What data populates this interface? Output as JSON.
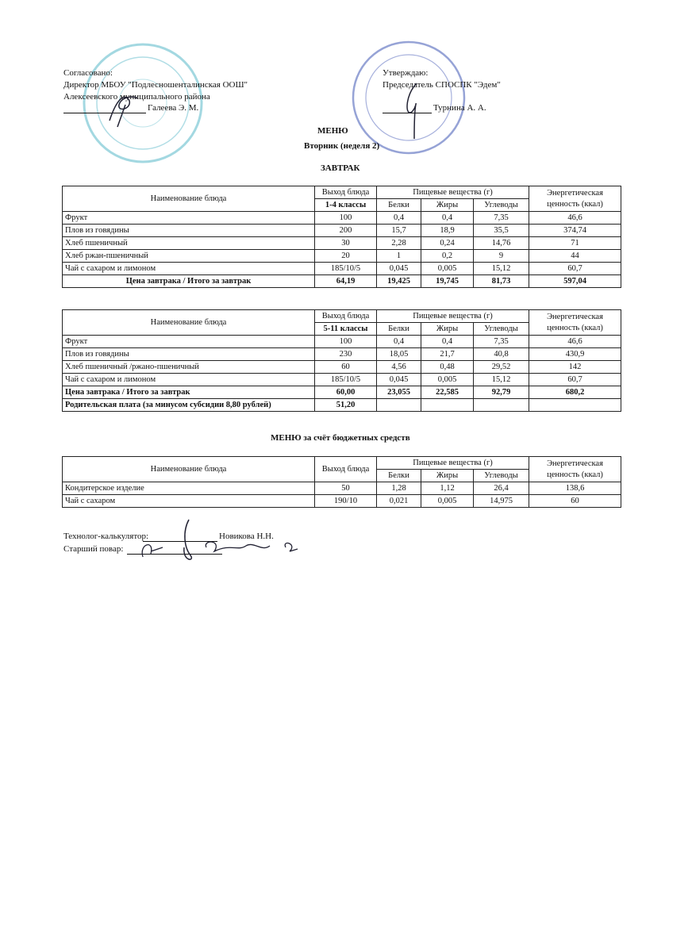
{
  "approval_left": {
    "label": "Согласовано:",
    "position": "Директор МБОУ \"Подлесношенталинская   ООШ\"",
    "district": "Алексеевского муниципального района",
    "name": "Галеева Э. М."
  },
  "approval_right": {
    "label": "Утверждаю:",
    "position": "Председатель СПОСПК  \"Эдем\"",
    "name": "Турнина А. А."
  },
  "stamps": {
    "left_text": "ОГРН 1021605754317 · 1605002926",
    "right_text": "СПОСПК \"ЭДЕМ\" ОГРН 1191690075752 ИНН 1605008409",
    "color": "#5fb7c9",
    "right_color": "#4a5fb0"
  },
  "title": {
    "menu": "МЕНЮ",
    "day": "Вторник (неделя 2)",
    "meal": "ЗАВТРАК"
  },
  "headers": {
    "name": "Наименование блюда",
    "yield": "Выход блюда",
    "nutrients": "Пищевые вещества (г)",
    "protein": "Белки",
    "fat": "Жиры",
    "carbs": "Углеводы",
    "energy": "Энергетическая ценность (ккал)"
  },
  "table1": {
    "group": "1-4 классы",
    "rows": [
      [
        "Фрукт",
        "100",
        "0,4",
        "0,4",
        "7,35",
        "46,6"
      ],
      [
        "Плов из говядины",
        "200",
        "15,7",
        "18,9",
        "35,5",
        "374,74"
      ],
      [
        "Хлеб пшеничный",
        "30",
        "2,28",
        "0,24",
        "14,76",
        "71"
      ],
      [
        "Хлеб ржан-пшеничный",
        "20",
        "1",
        "0,2",
        "9",
        "44"
      ],
      [
        "Чай с сахаром и лимоном",
        "185/10/5",
        "0,045",
        "0,005",
        "15,12",
        "60,7"
      ]
    ],
    "total": [
      "Цена завтрака / Итого за завтрак",
      "64,19",
      "19,425",
      "19,745",
      "81,73",
      "597,04"
    ]
  },
  "table2": {
    "group": "5-11 классы",
    "rows": [
      [
        "Фрукт",
        "100",
        "0,4",
        "0,4",
        "7,35",
        "46,6"
      ],
      [
        "Плов из говядины",
        "230",
        "18,05",
        "21,7",
        "40,8",
        "430,9"
      ],
      [
        "Хлеб пшеничный /ржано-пшеничный",
        "60",
        "4,56",
        "0,48",
        "29,52",
        "142"
      ],
      [
        "Чай с сахаром и лимоном",
        "185/10/5",
        "0,045",
        "0,005",
        "15,12",
        "60,7"
      ]
    ],
    "total": [
      "Цена завтрака / Итого за завтрак",
      "60,00",
      "23,055",
      "22,585",
      "92,79",
      "680,2"
    ],
    "parent_fee": [
      "Родительская плата (за минусом субсидии 8,80 рублей)",
      "51,20"
    ]
  },
  "budget": {
    "title": "МЕНЮ за счёт бюджетных средств",
    "rows": [
      [
        "Кондитерское изделие",
        "50",
        "1,28",
        "1,12",
        "26,4",
        "138,6"
      ],
      [
        "Чай с сахаром",
        "190/10",
        "0,021",
        "0,005",
        "14,975",
        "60"
      ]
    ]
  },
  "signatures": {
    "technologist_label": "Технолог-калькулятор:",
    "technologist_name": "Новикова Н.Н.",
    "cook_label": "Старший повар:"
  }
}
